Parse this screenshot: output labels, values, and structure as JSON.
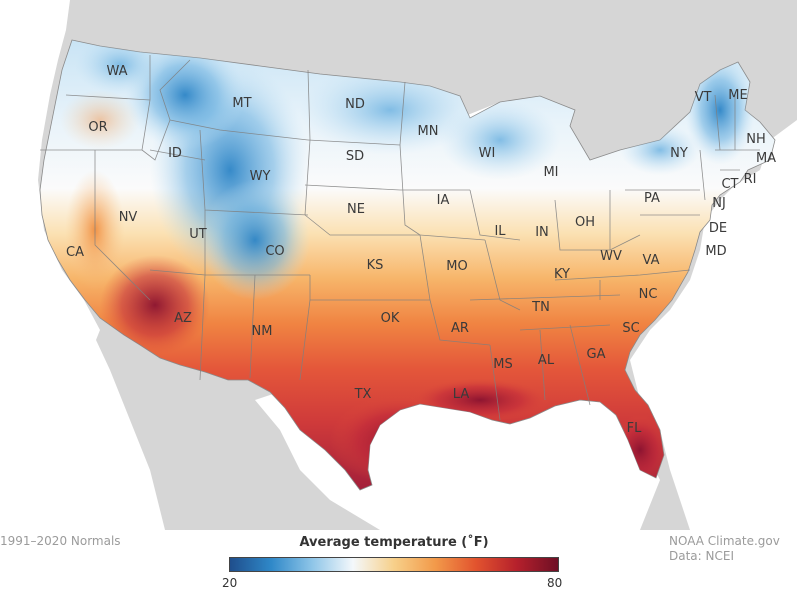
{
  "map": {
    "title": "",
    "states": [
      {
        "abbr": "WA"
      },
      {
        "abbr": "OR"
      },
      {
        "abbr": "CA"
      },
      {
        "abbr": "NV"
      },
      {
        "abbr": "ID"
      },
      {
        "abbr": "MT"
      },
      {
        "abbr": "WY"
      },
      {
        "abbr": "UT"
      },
      {
        "abbr": "CO"
      },
      {
        "abbr": "AZ"
      },
      {
        "abbr": "NM"
      },
      {
        "abbr": "ND"
      },
      {
        "abbr": "SD"
      },
      {
        "abbr": "NE"
      },
      {
        "abbr": "KS"
      },
      {
        "abbr": "OK"
      },
      {
        "abbr": "TX"
      },
      {
        "abbr": "MN"
      },
      {
        "abbr": "IA"
      },
      {
        "abbr": "MO"
      },
      {
        "abbr": "AR"
      },
      {
        "abbr": "LA"
      },
      {
        "abbr": "WI"
      },
      {
        "abbr": "IL"
      },
      {
        "abbr": "MI"
      },
      {
        "abbr": "IN"
      },
      {
        "abbr": "OH"
      },
      {
        "abbr": "KY"
      },
      {
        "abbr": "TN"
      },
      {
        "abbr": "MS"
      },
      {
        "abbr": "AL"
      },
      {
        "abbr": "GA"
      },
      {
        "abbr": "FL"
      },
      {
        "abbr": "SC"
      },
      {
        "abbr": "NC"
      },
      {
        "abbr": "VA"
      },
      {
        "abbr": "WV"
      },
      {
        "abbr": "PA"
      },
      {
        "abbr": "NY"
      },
      {
        "abbr": "VT"
      },
      {
        "abbr": "ME"
      },
      {
        "abbr": "NH"
      },
      {
        "abbr": "MA"
      },
      {
        "abbr": "RI"
      },
      {
        "abbr": "CT"
      },
      {
        "abbr": "NJ"
      },
      {
        "abbr": "DE"
      },
      {
        "abbr": "MD"
      }
    ]
  },
  "footer": {
    "normals_label": "1991–2020 Normals",
    "credit_line1": "NOAA Climate.gov",
    "credit_line2": "Data: NCEI"
  },
  "legend": {
    "title": "Average temperature (˚F)",
    "min": "20",
    "max": "80",
    "colors": [
      "#1f4e8c",
      "#2f88c8",
      "#8ec5e8",
      "#f4f8fb",
      "#f7d08a",
      "#f29a4a",
      "#e2532e",
      "#b5202c",
      "#6e0f25"
    ]
  },
  "colors": {
    "land_outside": "#d6d6d6",
    "water": "#ffffff",
    "border": "#7f7f7f"
  }
}
